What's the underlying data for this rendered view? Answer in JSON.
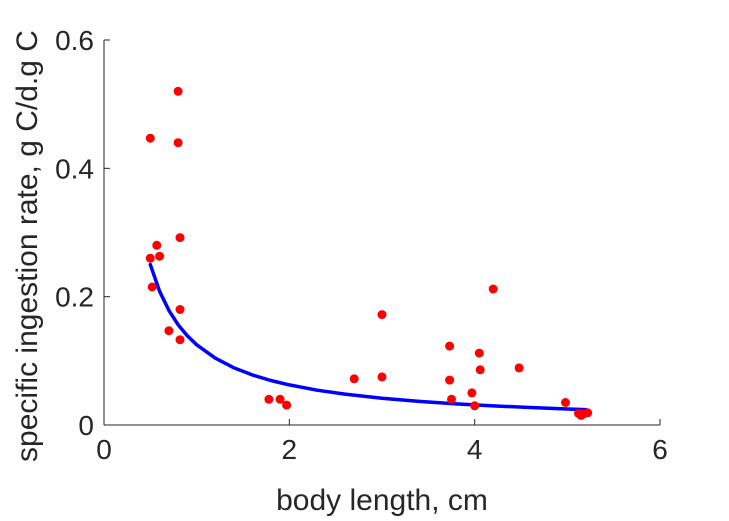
{
  "chart_data": {
    "type": "scatter",
    "xlabel": "body length, cm",
    "ylabel": "specific ingestion rate, g C/d.g C",
    "xlim": [
      0,
      6
    ],
    "ylim": [
      0,
      0.6
    ],
    "xticks": [
      0,
      2,
      4,
      6
    ],
    "yticks": [
      0,
      0.2,
      0.4,
      0.6
    ],
    "xtick_labels": [
      "0",
      "2",
      "4",
      "6"
    ],
    "ytick_labels": [
      "0",
      "0.2",
      "0.4",
      "0.6"
    ],
    "grid": false,
    "box": "off",
    "colors": {
      "points": "#ff0000",
      "fit": "#0000ff",
      "axis": "#262626"
    },
    "series": [
      {
        "kind": "points",
        "x": [
          0.5,
          0.52,
          0.5,
          0.57,
          0.6,
          0.7,
          0.8,
          0.8,
          0.82,
          0.82,
          0.82,
          1.78,
          1.9,
          1.97,
          2.7,
          3.0,
          3.0,
          3.73,
          3.73,
          3.75,
          3.97,
          4.0,
          4.05,
          4.06,
          4.2,
          4.48,
          4.98,
          5.12,
          5.15,
          5.17,
          5.22
        ],
        "y": [
          0.447,
          0.215,
          0.26,
          0.28,
          0.263,
          0.147,
          0.52,
          0.44,
          0.292,
          0.18,
          0.133,
          0.04,
          0.04,
          0.031,
          0.072,
          0.172,
          0.075,
          0.123,
          0.07,
          0.04,
          0.05,
          0.03,
          0.112,
          0.086,
          0.212,
          0.089,
          0.035,
          0.018,
          0.015,
          0.017,
          0.019
        ]
      },
      {
        "kind": "fit-curve",
        "x": [
          0.5,
          0.6,
          0.7,
          0.8,
          0.9,
          1.0,
          1.2,
          1.4,
          1.6,
          1.8,
          2.0,
          2.3,
          2.6,
          3.0,
          3.4,
          3.8,
          4.2,
          4.6,
          5.0,
          5.2
        ],
        "y": [
          0.25,
          0.2083,
          0.1786,
          0.1563,
          0.1389,
          0.125,
          0.1042,
          0.0893,
          0.0781,
          0.0694,
          0.0625,
          0.0543,
          0.0481,
          0.0417,
          0.0368,
          0.0329,
          0.0298,
          0.0272,
          0.025,
          0.024
        ]
      }
    ]
  }
}
